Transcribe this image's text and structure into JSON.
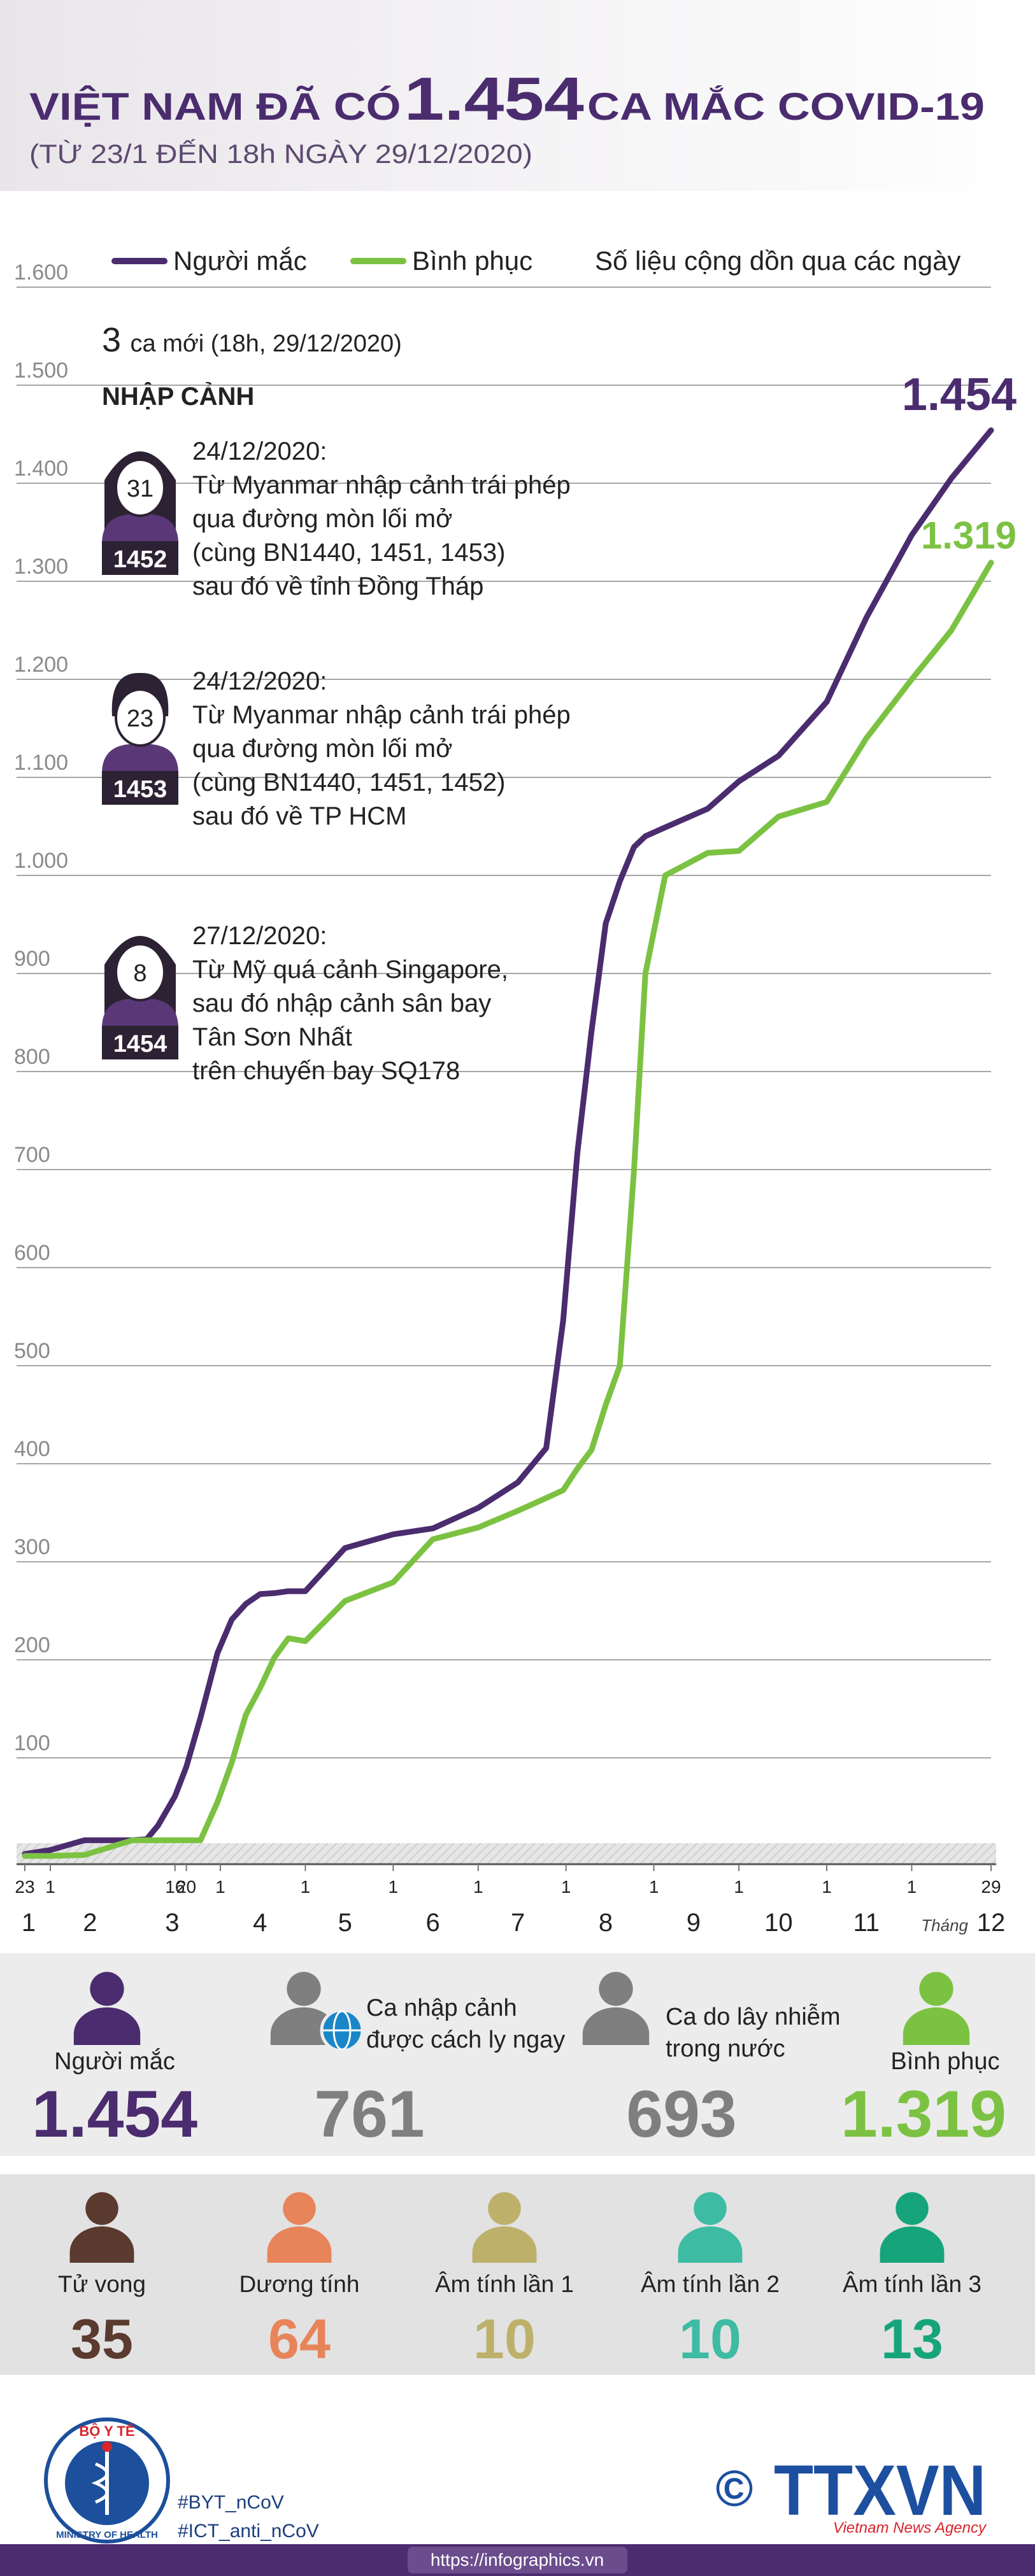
{
  "header": {
    "title_pre": "VIỆT NAM ĐÃ CÓ",
    "title_number": "1.454",
    "title_post": "CA MẮC COVID-19",
    "subtitle": "(TỪ 23/1 ĐẾN 18h NGÀY 29/12/2020)"
  },
  "chart_data": {
    "type": "line",
    "note": "Số liệu cộng dồn qua các ngày",
    "x": [
      "23/1",
      "1/2",
      "13/2",
      "1/3",
      "6/3",
      "10/3",
      "16/3",
      "20/3",
      "25/3",
      "31/3",
      "5/4",
      "10/4",
      "15/4",
      "20/4",
      "25/4",
      "1/5",
      "15/5",
      "1/6",
      "15/6",
      "1/7",
      "15/7",
      "25/7",
      "31/7",
      "5/8",
      "10/8",
      "15/8",
      "20/8",
      "25/8",
      "29/8",
      "5/9",
      "20/9",
      "1/10",
      "15/10",
      "1/11",
      "15/11",
      "1/12",
      "15/12",
      "29/12"
    ],
    "xlim": [
      "23/1",
      "29/12"
    ],
    "xticks": [
      {
        "value": "23/1",
        "label": "23"
      },
      {
        "value": "1/2",
        "label": "1"
      },
      {
        "value": "16/3",
        "label": "16"
      },
      {
        "value": "20/3",
        "label": "20"
      },
      {
        "value": "1/4",
        "label": "1"
      },
      {
        "value": "1/5",
        "label": "1"
      },
      {
        "value": "1/6",
        "label": "1"
      },
      {
        "value": "1/7",
        "label": "1"
      },
      {
        "value": "1/8",
        "label": "1"
      },
      {
        "value": "1/9",
        "label": "1"
      },
      {
        "value": "1/10",
        "label": "1"
      },
      {
        "value": "1/11",
        "label": "1"
      },
      {
        "value": "1/12",
        "label": "1"
      },
      {
        "value": "29/12",
        "label": "29"
      }
    ],
    "months": [
      "1",
      "2",
      "3",
      "4",
      "5",
      "6",
      "7",
      "8",
      "9",
      "10",
      "11",
      "12"
    ],
    "month_unit": "Tháng",
    "ylim": [
      0,
      1600
    ],
    "yticks": [
      100,
      200,
      300,
      400,
      500,
      600,
      700,
      800,
      900,
      {
        "value": 1000,
        "label": "1.000"
      },
      {
        "value": 1100,
        "label": "1.100"
      },
      {
        "value": 1200,
        "label": "1.200"
      },
      {
        "value": 1300,
        "label": "1.300"
      },
      {
        "value": 1400,
        "label": "1.400"
      },
      {
        "value": 1500,
        "label": "1.500"
      },
      {
        "value": 1600,
        "label": "1.600"
      }
    ],
    "grid": true,
    "series": [
      {
        "name": "Người mắc",
        "color": "#4b2c6f",
        "values": [
          2,
          6,
          16,
          16,
          17,
          31,
          61,
          91,
          141,
          207,
          241,
          257,
          267,
          268,
          270,
          270,
          314,
          328,
          334,
          355,
          381,
          416,
          546,
          717,
          841,
          951,
          994,
          1029,
          1040,
          1049,
          1068,
          1096,
          1122,
          1177,
          1263,
          1347,
          1405,
          1454
        ],
        "value_labels": [
          null,
          null,
          null,
          null,
          null,
          null,
          null,
          null,
          null,
          null,
          null,
          null,
          null,
          null,
          null,
          null,
          null,
          null,
          null,
          null,
          null,
          null,
          null,
          null,
          null,
          null,
          null,
          null,
          null,
          null,
          null,
          null,
          null,
          null,
          null,
          null,
          null,
          "1.454"
        ]
      },
      {
        "name": "Bình phục",
        "color": "#7cc242",
        "values": [
          0,
          0,
          1,
          16,
          16,
          16,
          16,
          16,
          16,
          55,
          95,
          144,
          171,
          202,
          222,
          219,
          260,
          279,
          323,
          335,
          352,
          365,
          373,
          395,
          414,
          460,
          500,
          700,
          900,
          1000,
          1023,
          1025,
          1060,
          1075,
          1140,
          1200,
          1250,
          1319
        ],
        "value_labels": [
          null,
          null,
          null,
          null,
          null,
          null,
          null,
          null,
          null,
          null,
          null,
          null,
          null,
          null,
          null,
          null,
          null,
          null,
          null,
          null,
          null,
          null,
          null,
          null,
          null,
          null,
          null,
          null,
          null,
          null,
          null,
          null,
          null,
          null,
          null,
          null,
          null,
          "1.319"
        ]
      }
    ]
  },
  "annotations": {
    "new_cases": "3",
    "new_cases_text": "ca mới (18h, 29/12/2020)",
    "section": "NHẬP CẢNH",
    "patients": [
      {
        "age": "31",
        "id": "1452",
        "lines": [
          "24/12/2020:",
          "Từ Myanmar nhập cảnh trái phép",
          "qua đường mòn lối mở",
          "(cùng BN1440, 1451, 1453)",
          "sau đó về tỉnh Đồng Tháp"
        ]
      },
      {
        "age": "23",
        "id": "1453",
        "lines": [
          "24/12/2020:",
          "Từ Myanmar nhập cảnh trái phép",
          "qua đường mòn lối mở",
          "(cùng BN1440, 1451, 1452)",
          "sau đó về TP HCM"
        ]
      },
      {
        "age": "8",
        "id": "1454",
        "lines": [
          "27/12/2020:",
          "Từ Mỹ quá cảnh Singapore,",
          "sau đó nhập cảnh sân bay",
          "Tân Sơn Nhất",
          "trên chuyến bay SQ178"
        ]
      }
    ]
  },
  "summary": [
    {
      "label_lines": [
        "Người mắc"
      ],
      "value": "1.454",
      "color": "#4b2c6f"
    },
    {
      "label_lines": [
        "Ca nhập cảnh",
        "được cách ly ngay"
      ],
      "value": "761",
      "color": "#7f7f7f"
    },
    {
      "label_lines": [
        "Ca do lây nhiễm",
        "trong nước"
      ],
      "value": "693",
      "color": "#7f7f7f"
    },
    {
      "label_lines": [
        "Bình phục"
      ],
      "value": "1.319",
      "color": "#7cc242"
    }
  ],
  "outcomes": [
    {
      "label": "Tử vong",
      "value": "35",
      "color": "#5b3a2f"
    },
    {
      "label": "Dương tính",
      "value": "64",
      "color": "#e8845a"
    },
    {
      "label": "Âm tính lần 1",
      "value": "10",
      "color": "#bdb06a"
    },
    {
      "label": "Âm tính lần 2",
      "value": "10",
      "color": "#3dbba3"
    },
    {
      "label": "Âm tính lần 3",
      "value": "13",
      "color": "#16a57a"
    }
  ],
  "footer": {
    "ministry": "BỘ Y TẾ",
    "ministry_en": "MINISTRY OF HEALTH",
    "hashtags": [
      "#BYT_nCoV",
      "#ICT_anti_nCoV"
    ],
    "copyright": "©",
    "agency": "TTXVN",
    "agency_en": "Vietnam News Agency",
    "url": "https://infographics.vn"
  }
}
